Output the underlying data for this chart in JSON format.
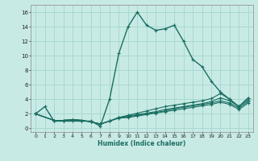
{
  "xlabel": "Humidex (Indice chaleur)",
  "ylabel": "",
  "xlim": [
    -0.5,
    23.5
  ],
  "ylim": [
    -0.5,
    17
  ],
  "xticks": [
    0,
    1,
    2,
    3,
    4,
    5,
    6,
    7,
    8,
    9,
    10,
    11,
    12,
    13,
    14,
    15,
    16,
    17,
    18,
    19,
    20,
    21,
    22,
    23
  ],
  "yticks": [
    0,
    2,
    4,
    6,
    8,
    10,
    12,
    14,
    16
  ],
  "bg_color": "#c8eae5",
  "grid_color": "#a8d8d2",
  "line_color": "#1a6e62",
  "lines": [
    {
      "x": [
        0,
        1,
        2,
        3,
        4,
        5,
        6,
        7,
        8,
        9,
        10,
        11,
        12,
        13,
        14,
        15,
        16,
        17,
        18,
        19,
        20,
        21,
        22,
        23
      ],
      "y": [
        2,
        3,
        1,
        1,
        1,
        1,
        1,
        0.3,
        4,
        10.3,
        14,
        16,
        14.2,
        13.5,
        13.7,
        14.2,
        12,
        9.5,
        8.5,
        6.5,
        5,
        4,
        3,
        4.2
      ]
    },
    {
      "x": [
        0,
        2,
        3,
        4,
        5,
        6,
        7,
        8,
        9,
        10,
        11,
        12,
        13,
        14,
        15,
        16,
        17,
        18,
        19,
        20,
        21,
        22,
        23
      ],
      "y": [
        2,
        1.1,
        1.1,
        1.2,
        1.1,
        0.9,
        0.6,
        1.0,
        1.5,
        1.8,
        2.1,
        2.4,
        2.7,
        3.0,
        3.2,
        3.4,
        3.6,
        3.8,
        4.1,
        4.8,
        4.0,
        3.0,
        4.2
      ]
    },
    {
      "x": [
        0,
        2,
        3,
        4,
        5,
        6,
        7,
        8,
        9,
        10,
        11,
        12,
        13,
        14,
        15,
        16,
        17,
        18,
        19,
        20,
        21,
        22,
        23
      ],
      "y": [
        2,
        1.1,
        1.1,
        1.2,
        1.1,
        0.9,
        0.6,
        1.0,
        1.5,
        1.7,
        1.9,
        2.1,
        2.3,
        2.6,
        2.8,
        3.0,
        3.2,
        3.4,
        3.7,
        4.2,
        3.8,
        3.0,
        3.9
      ]
    },
    {
      "x": [
        0,
        2,
        3,
        4,
        5,
        6,
        7,
        8,
        9,
        10,
        11,
        12,
        13,
        14,
        15,
        16,
        17,
        18,
        19,
        20,
        21,
        22,
        23
      ],
      "y": [
        2,
        1.1,
        1.1,
        1.2,
        1.1,
        0.9,
        0.6,
        1.0,
        1.5,
        1.6,
        1.8,
        2.0,
        2.2,
        2.4,
        2.7,
        2.9,
        3.1,
        3.3,
        3.5,
        3.8,
        3.5,
        2.8,
        3.7
      ]
    },
    {
      "x": [
        0,
        2,
        3,
        4,
        5,
        6,
        7,
        8,
        9,
        10,
        11,
        12,
        13,
        14,
        15,
        16,
        17,
        18,
        19,
        20,
        21,
        22,
        23
      ],
      "y": [
        2,
        1.1,
        1.1,
        1.2,
        1.1,
        0.9,
        0.6,
        1.0,
        1.4,
        1.5,
        1.7,
        1.9,
        2.1,
        2.3,
        2.5,
        2.7,
        2.9,
        3.1,
        3.3,
        3.6,
        3.3,
        2.6,
        3.5
      ]
    }
  ]
}
